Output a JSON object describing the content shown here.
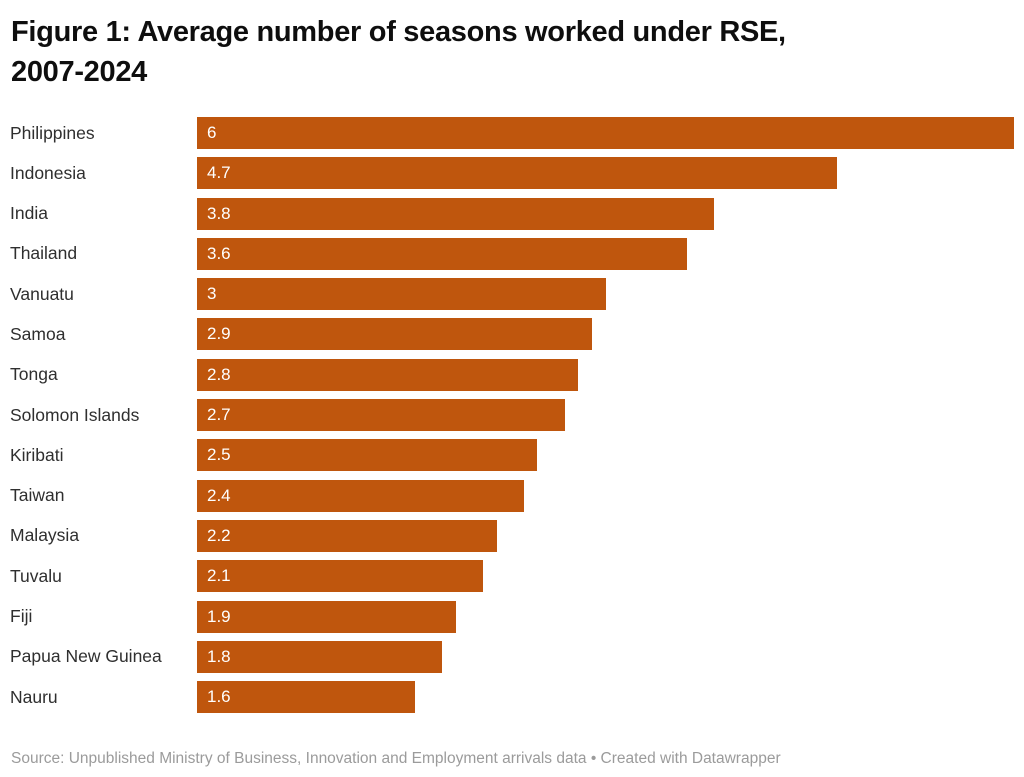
{
  "header": {
    "title_lines": [
      "Figure 1: Average number of seasons worked under RSE,",
      "2007-2024"
    ]
  },
  "footer": {
    "source_note": "Source: Unpublished Ministry of Business, Innovation and Employment arrivals data • Created with Datawrapper"
  },
  "colors": {
    "background": "#ffffff",
    "bar": "#bf560d",
    "title_text": "#0e0e0e",
    "category_label": "#2f2f2f",
    "value_label": "#ffffff",
    "source_text": "#9b9b9b"
  },
  "chart_data": {
    "type": "bar",
    "orientation": "horizontal",
    "title": "Figure 1: Average number of seasons worked under RSE, 2007-2024",
    "categories": [
      "Philippines",
      "Indonesia",
      "India",
      "Thailand",
      "Vanuatu",
      "Samoa",
      "Tonga",
      "Solomon Islands",
      "Kiribati",
      "Taiwan",
      "Malaysia",
      "Tuvalu",
      "Fiji",
      "Papua New Guinea",
      "Nauru"
    ],
    "values": [
      6,
      4.7,
      3.8,
      3.6,
      3,
      2.9,
      2.8,
      2.7,
      2.5,
      2.4,
      2.2,
      2.1,
      1.9,
      1.8,
      1.6
    ],
    "value_labels": [
      "6",
      "4.7",
      "3.8",
      "3.6",
      "3",
      "2.9",
      "2.8",
      "2.7",
      "2.5",
      "2.4",
      "2.2",
      "2.1",
      "1.9",
      "1.8",
      "1.6"
    ],
    "xlabel": "",
    "ylabel": "",
    "xlim": [
      0,
      6
    ],
    "grid": false,
    "legend": false,
    "value_label_position": "inside-left",
    "bar_color": "#bf560d",
    "source_note": "Source: Unpublished Ministry of Business, Innovation and Employment arrivals data • Created with Datawrapper"
  }
}
